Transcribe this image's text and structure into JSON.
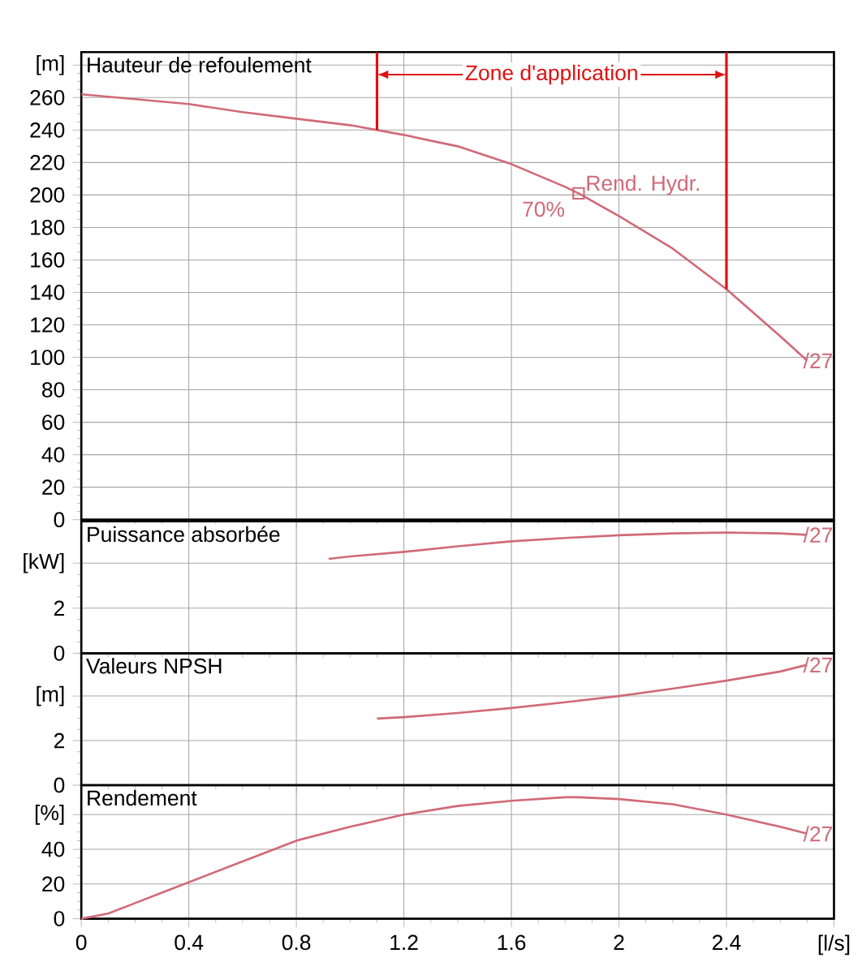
{
  "chart_data": [
    {
      "type": "line",
      "title": "Hauteur de refoulement",
      "xlim": [
        0,
        2.8
      ],
      "ylim": [
        0,
        288
      ],
      "xticks": [
        0,
        0.4,
        0.8,
        1.2,
        1.6,
        2,
        2.4
      ],
      "yticks": [
        0,
        20,
        40,
        60,
        80,
        100,
        120,
        140,
        160,
        180,
        200,
        220,
        240,
        260,
        {
          "value": 280,
          "label": "[m]"
        }
      ],
      "tick_labels": "y",
      "grid": true,
      "series": [
        {
          "color": "#d06a78",
          "x": [
            0,
            0.2,
            0.4,
            0.6,
            0.8,
            1.0,
            1.1,
            1.2,
            1.4,
            1.6,
            1.8,
            1.85,
            2.0,
            2.2,
            2.4,
            2.6,
            2.7
          ],
          "values": [
            262,
            259,
            256,
            251,
            247,
            243,
            240,
            237,
            230,
            219,
            205,
            201,
            187,
            167,
            142,
            113,
            98
          ]
        },
        {
          "type": "scatter",
          "marker": "square",
          "color": "#d06a78",
          "x": [
            1.85
          ],
          "values": [
            201
          ]
        }
      ],
      "ref_lines": [
        {
          "axis": "x",
          "value": 1.1,
          "color": "#e01010"
        },
        {
          "axis": "x",
          "value": 2.4,
          "color": "#e01010"
        }
      ],
      "annotations": [
        "Zone d'application",
        "Rend. Hydr.",
        "70%",
        "/27"
      ]
    },
    {
      "type": "line",
      "title": "Puissance absorbée",
      "xlim": [
        0,
        2.8
      ],
      "ylim": [
        0,
        5.86
      ],
      "xticks": [
        0,
        0.4,
        0.8,
        1.2,
        1.6,
        2,
        2.4
      ],
      "yticks": [
        0,
        2,
        {
          "value": 4,
          "label": "[kW]"
        }
      ],
      "tick_labels": "y",
      "grid": true,
      "series": [
        {
          "color": "#d06a78",
          "x": [
            0.92,
            1.0,
            1.2,
            1.4,
            1.6,
            1.8,
            2.0,
            2.2,
            2.4,
            2.6,
            2.7
          ],
          "values": [
            4.19,
            4.3,
            4.5,
            4.75,
            4.97,
            5.12,
            5.24,
            5.32,
            5.36,
            5.32,
            5.26
          ]
        }
      ],
      "annotations": [
        "/27"
      ]
    },
    {
      "type": "line",
      "title": "Valeurs NPSH",
      "xlim": [
        0,
        2.8
      ],
      "ylim": [
        0,
        5.92
      ],
      "xticks": [
        0,
        0.4,
        0.8,
        1.2,
        1.6,
        2,
        2.4
      ],
      "yticks": [
        0,
        2,
        {
          "value": 4,
          "label": "[m]"
        }
      ],
      "tick_labels": "y",
      "grid": true,
      "series": [
        {
          "color": "#d06a78",
          "x": [
            1.1,
            1.2,
            1.4,
            1.6,
            1.8,
            2.0,
            2.2,
            2.4,
            2.6,
            2.7
          ],
          "values": [
            2.99,
            3.05,
            3.24,
            3.46,
            3.72,
            4.0,
            4.33,
            4.69,
            5.1,
            5.4
          ]
        }
      ],
      "annotations": [
        "/27"
      ]
    },
    {
      "type": "line",
      "title": "Rendement",
      "xlim": [
        0,
        2.8
      ],
      "ylim": [
        0,
        77
      ],
      "xticks": [
        0,
        0.4,
        0.8,
        1.2,
        1.6,
        2,
        2.4,
        {
          "value": 2.8,
          "label": "[l/s]"
        }
      ],
      "yticks": [
        0,
        20,
        40,
        {
          "value": 60,
          "label": "[%]"
        }
      ],
      "grid": true,
      "series": [
        {
          "color": "#d06a78",
          "x": [
            0,
            0.1,
            0.2,
            0.3,
            0.4,
            0.6,
            0.8,
            1.0,
            1.2,
            1.4,
            1.6,
            1.8,
            1.85,
            2.0,
            2.2,
            2.4,
            2.6,
            2.7
          ],
          "values": [
            0,
            3,
            9,
            15,
            21,
            33,
            45,
            53,
            60,
            65,
            68,
            70,
            70,
            69,
            66,
            60,
            53,
            49
          ]
        }
      ],
      "annotations": [
        "/27"
      ]
    }
  ]
}
